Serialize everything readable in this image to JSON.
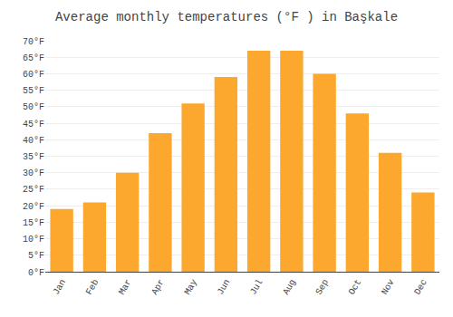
{
  "chart_data": {
    "type": "bar",
    "title": "Average monthly temperatures (°F ) in Başkale",
    "categories": [
      "Jan",
      "Feb",
      "Mar",
      "Apr",
      "May",
      "Jun",
      "Jul",
      "Aug",
      "Sep",
      "Oct",
      "Nov",
      "Dec"
    ],
    "values": [
      19,
      21,
      30,
      42,
      51,
      59,
      67,
      67,
      60,
      48,
      36,
      24
    ],
    "color": "#FCA82F",
    "ylim": [
      0,
      70
    ],
    "yticks": [
      {
        "value": 0,
        "label": "0°F"
      },
      {
        "value": 5,
        "label": "5°F"
      },
      {
        "value": 10,
        "label": "10°F"
      },
      {
        "value": 15,
        "label": "15°F"
      },
      {
        "value": 20,
        "label": "20°F"
      },
      {
        "value": 25,
        "label": "25°F"
      },
      {
        "value": 30,
        "label": "30°F"
      },
      {
        "value": 35,
        "label": "35°F"
      },
      {
        "value": 40,
        "label": "40°F"
      },
      {
        "value": 45,
        "label": "45°F"
      },
      {
        "value": 50,
        "label": "50°F"
      },
      {
        "value": 55,
        "label": "55°F"
      },
      {
        "value": 60,
        "label": "60°F"
      },
      {
        "value": 65,
        "label": "65°F"
      },
      {
        "value": 70,
        "label": "70°F"
      }
    ],
    "grid": true
  }
}
